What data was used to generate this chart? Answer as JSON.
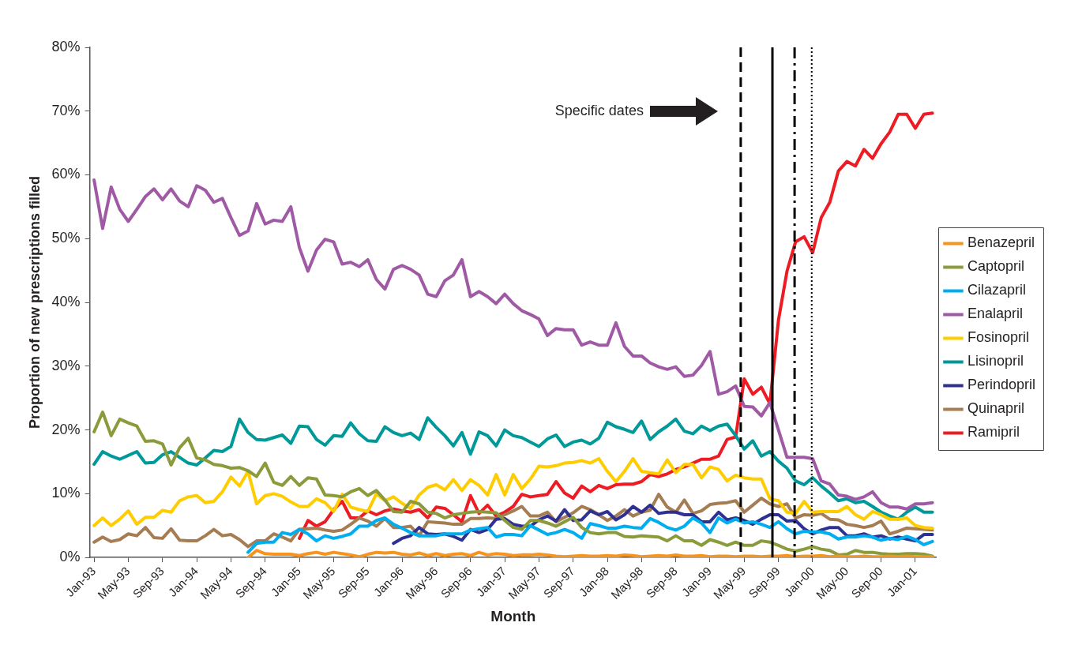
{
  "chart_data": {
    "type": "line",
    "xlabel": "Month",
    "ylabel": "Proportion of new prescriptions filled",
    "x": [
      "1993-01",
      "1993-02",
      "1993-03",
      "1993-04",
      "1993-05",
      "1993-06",
      "1993-07",
      "1993-08",
      "1993-09",
      "1993-10",
      "1993-11",
      "1993-12",
      "1994-01",
      "1994-02",
      "1994-03",
      "1994-04",
      "1994-05",
      "1994-06",
      "1994-07",
      "1994-08",
      "1994-09",
      "1994-10",
      "1994-11",
      "1994-12",
      "1995-01",
      "1995-02",
      "1995-03",
      "1995-04",
      "1995-05",
      "1995-06",
      "1995-07",
      "1995-08",
      "1995-09",
      "1995-10",
      "1995-11",
      "1995-12",
      "1996-01",
      "1996-02",
      "1996-03",
      "1996-04",
      "1996-05",
      "1996-06",
      "1996-07",
      "1996-08",
      "1996-09",
      "1996-10",
      "1996-11",
      "1996-12",
      "1997-01",
      "1997-02",
      "1997-03",
      "1997-04",
      "1997-05",
      "1997-06",
      "1997-07",
      "1997-08",
      "1997-09",
      "1997-10",
      "1997-11",
      "1997-12",
      "1998-01",
      "1998-02",
      "1998-03",
      "1998-04",
      "1998-05",
      "1998-06",
      "1998-07",
      "1998-08",
      "1998-09",
      "1998-10",
      "1998-11",
      "1998-12",
      "1999-01",
      "1999-02",
      "1999-03",
      "1999-04",
      "1999-05",
      "1999-06",
      "1999-07",
      "1999-08",
      "1999-09",
      "1999-10",
      "1999-11",
      "1999-12",
      "2000-01",
      "2000-02",
      "2000-03",
      "2000-04",
      "2000-05",
      "2000-06",
      "2000-07",
      "2000-08",
      "2000-09",
      "2000-10",
      "2000-11",
      "2000-12",
      "2001-01",
      "2001-02",
      "2001-03"
    ],
    "xlim": [
      "1992-12-16",
      "2001-03-16"
    ],
    "xticks": [
      {
        "value": "1993-01",
        "label": "Jan-93"
      },
      {
        "value": "1993-05",
        "label": "May-93"
      },
      {
        "value": "1993-09",
        "label": "Sep-93"
      },
      {
        "value": "1994-01",
        "label": "Jan-94"
      },
      {
        "value": "1994-05",
        "label": "May-94"
      },
      {
        "value": "1994-09",
        "label": "Sep-94"
      },
      {
        "value": "1995-01",
        "label": "Jan-95"
      },
      {
        "value": "1995-05",
        "label": "May-95"
      },
      {
        "value": "1995-09",
        "label": "Sep-95"
      },
      {
        "value": "1996-01",
        "label": "Jan-96"
      },
      {
        "value": "1996-05",
        "label": "May-96"
      },
      {
        "value": "1996-09",
        "label": "Sep-96"
      },
      {
        "value": "1997-01",
        "label": "Jan-97"
      },
      {
        "value": "1997-05",
        "label": "May-97"
      },
      {
        "value": "1997-09",
        "label": "Sep-97"
      },
      {
        "value": "1998-01",
        "label": "Jan-98"
      },
      {
        "value": "1998-05",
        "label": "May-98"
      },
      {
        "value": "1998-09",
        "label": "Sep-98"
      },
      {
        "value": "1999-01",
        "label": "Jan-99"
      },
      {
        "value": "1999-05",
        "label": "May-99"
      },
      {
        "value": "1999-09",
        "label": "Sep-99"
      },
      {
        "value": "2000-01",
        "label": "Jan-00"
      },
      {
        "value": "2000-05",
        "label": "May-00"
      },
      {
        "value": "2000-09",
        "label": "Sep-00"
      },
      {
        "value": "2001-01",
        "label": "Jan-01"
      }
    ],
    "ylim": [
      0,
      80
    ],
    "yticks": [
      {
        "value": 0,
        "label": "0%"
      },
      {
        "value": 10,
        "label": "10%"
      },
      {
        "value": 20,
        "label": "20%"
      },
      {
        "value": 30,
        "label": "30%"
      },
      {
        "value": 40,
        "label": "40%"
      },
      {
        "value": 50,
        "label": "50%"
      },
      {
        "value": 60,
        "label": "60%"
      },
      {
        "value": 70,
        "label": "70%"
      },
      {
        "value": 80,
        "label": "80%"
      }
    ],
    "grid": false,
    "legend": "right",
    "marker": "none",
    "line_style": "solid",
    "annotations": [
      "Specific dates"
    ],
    "ref_lines": [
      {
        "axis": "x",
        "value": "1999-04-19",
        "line_style": "dashed",
        "color": "#000000"
      },
      {
        "axis": "x",
        "value": "1999-08-10",
        "line_style": "solid",
        "color": "#000000"
      },
      {
        "axis": "x",
        "value": "1999-10-28",
        "line_style": "dashdot",
        "color": "#000000"
      },
      {
        "axis": "x",
        "value": "1999-12-28",
        "line_style": "dotted",
        "color": "#000000"
      }
    ],
    "series": [
      {
        "name": "Benazepril",
        "color": "#f7941d",
        "values": [
          null,
          null,
          null,
          null,
          null,
          null,
          null,
          null,
          null,
          null,
          null,
          null,
          null,
          null,
          null,
          null,
          null,
          null,
          0.0,
          1.1,
          0.6,
          0.5,
          0.5,
          0.5,
          0.3,
          0.6,
          0.8,
          0.5,
          0.8,
          0.6,
          0.4,
          0.1,
          0.5,
          0.8,
          0.7,
          0.8,
          0.5,
          0.4,
          0.7,
          0.3,
          0.6,
          0.3,
          0.5,
          0.6,
          0.3,
          0.8,
          0.4,
          0.6,
          0.5,
          0.3,
          0.4,
          0.4,
          0.5,
          0.4,
          0.2,
          0.1,
          0.2,
          0.3,
          0.2,
          0.2,
          0.3,
          0.2,
          0.4,
          0.3,
          0.1,
          0.2,
          0.3,
          0.2,
          0.4,
          0.2,
          0.2,
          0.3,
          0.1,
          0.2,
          0.2,
          0.1,
          0.2,
          0.2,
          0.1,
          0.2,
          0.2,
          0.3,
          0.1,
          0.2,
          0.2,
          0.3,
          0.1,
          0.2,
          0.1,
          0.1,
          0.2,
          0.1,
          0.1,
          0.2,
          0.1,
          0.2,
          0.1,
          0.1,
          0.1
        ]
      },
      {
        "name": "Captopril",
        "color": "#8b9a3a",
        "values": [
          19.7,
          22.8,
          19.1,
          21.7,
          21.1,
          20.6,
          18.2,
          18.3,
          17.8,
          14.5,
          17.2,
          18.7,
          15.6,
          15.3,
          14.6,
          14.4,
          14.0,
          14.1,
          13.6,
          12.7,
          14.8,
          11.8,
          11.3,
          12.7,
          11.3,
          12.5,
          12.3,
          9.8,
          9.7,
          9.5,
          10.3,
          10.8,
          9.7,
          10.5,
          9.0,
          7.2,
          7.1,
          8.8,
          8.4,
          7.1,
          6.9,
          6.2,
          6.7,
          6.9,
          7.1,
          7.2,
          7.1,
          7.0,
          5.8,
          4.7,
          4.4,
          5.8,
          5.8,
          5.4,
          4.9,
          5.6,
          6.3,
          4.7,
          3.9,
          3.7,
          3.9,
          3.9,
          3.3,
          3.2,
          3.4,
          3.3,
          3.2,
          2.6,
          3.4,
          2.6,
          2.6,
          1.9,
          2.8,
          2.4,
          1.9,
          2.4,
          1.9,
          1.9,
          2.6,
          2.4,
          1.9,
          1.3,
          1.0,
          1.3,
          1.7,
          1.3,
          1.1,
          0.4,
          0.5,
          1.1,
          0.8,
          0.8,
          0.6,
          0.5,
          0.5,
          0.6,
          0.6,
          0.5,
          0.2
        ]
      },
      {
        "name": "Cilazapril",
        "color": "#00aeef",
        "values": [
          null,
          null,
          null,
          null,
          null,
          null,
          null,
          null,
          null,
          null,
          null,
          null,
          null,
          null,
          null,
          null,
          null,
          null,
          0.8,
          2.2,
          2.4,
          2.4,
          3.9,
          3.6,
          4.4,
          3.7,
          2.6,
          3.4,
          3.0,
          3.3,
          3.7,
          4.9,
          4.9,
          5.8,
          6.2,
          5.2,
          4.6,
          3.9,
          3.4,
          3.4,
          3.4,
          3.7,
          3.7,
          3.7,
          4.3,
          4.5,
          4.7,
          3.2,
          3.6,
          3.6,
          3.4,
          5.0,
          4.3,
          3.6,
          3.9,
          4.4,
          3.9,
          3.0,
          5.3,
          5.0,
          4.6,
          4.6,
          4.9,
          4.7,
          4.6,
          6.1,
          5.5,
          4.7,
          4.3,
          4.9,
          6.2,
          5.4,
          3.9,
          6.2,
          5.4,
          6.0,
          5.4,
          5.6,
          5.2,
          4.7,
          5.6,
          4.5,
          3.7,
          4.1,
          4.0,
          4.0,
          3.7,
          2.9,
          3.2,
          3.2,
          3.4,
          3.2,
          2.7,
          3.0,
          2.8,
          3.3,
          2.8,
          2.0,
          2.5
        ]
      },
      {
        "name": "Enalapril",
        "color": "#a05aa5",
        "values": [
          59.2,
          51.6,
          58.1,
          54.6,
          52.7,
          54.6,
          56.6,
          57.8,
          56.1,
          57.8,
          55.9,
          55.0,
          58.3,
          57.6,
          55.7,
          56.3,
          53.3,
          50.5,
          51.2,
          55.5,
          52.3,
          52.9,
          52.7,
          55.0,
          48.6,
          44.9,
          48.2,
          49.9,
          49.5,
          46.0,
          46.3,
          45.6,
          46.7,
          43.6,
          42.1,
          45.2,
          45.8,
          45.2,
          44.3,
          41.3,
          40.9,
          43.4,
          44.3,
          46.7,
          40.9,
          41.7,
          40.9,
          39.8,
          41.3,
          39.8,
          38.7,
          38.1,
          37.4,
          34.8,
          35.9,
          35.7,
          35.7,
          33.3,
          33.8,
          33.3,
          33.3,
          36.8,
          33.1,
          31.6,
          31.6,
          30.5,
          29.9,
          29.5,
          29.9,
          28.4,
          28.6,
          30.1,
          32.3,
          25.6,
          26.0,
          26.9,
          23.7,
          23.6,
          22.2,
          24.3,
          20.0,
          15.7,
          15.7,
          15.7,
          15.5,
          12.0,
          11.5,
          9.8,
          9.6,
          9.1,
          9.5,
          10.3,
          8.6,
          7.9,
          7.9,
          7.6,
          8.4,
          8.4,
          8.6
        ]
      },
      {
        "name": "Fosinopril",
        "color": "#ffcc00",
        "values": [
          5.0,
          6.2,
          5.0,
          6.0,
          7.3,
          5.2,
          6.3,
          6.3,
          7.4,
          7.1,
          8.9,
          9.5,
          9.7,
          8.6,
          8.8,
          10.3,
          12.6,
          11.2,
          13.5,
          8.4,
          9.7,
          10.0,
          9.6,
          8.7,
          8.0,
          8.0,
          9.2,
          8.6,
          7.2,
          9.9,
          7.9,
          7.5,
          7.2,
          10.0,
          8.9,
          9.5,
          8.5,
          7.7,
          9.8,
          11.0,
          11.4,
          10.6,
          12.2,
          10.5,
          12.2,
          11.3,
          9.8,
          13.0,
          9.8,
          13.0,
          10.8,
          12.3,
          14.3,
          14.2,
          14.4,
          14.8,
          14.9,
          15.2,
          14.8,
          15.5,
          13.5,
          11.9,
          13.5,
          15.5,
          13.5,
          13.3,
          13.1,
          15.3,
          13.3,
          14.6,
          14.6,
          12.5,
          14.2,
          13.8,
          12.0,
          12.9,
          12.5,
          12.3,
          12.3,
          9.2,
          8.9,
          7.1,
          6.9,
          8.8,
          7.1,
          7.2,
          7.2,
          7.2,
          8.0,
          6.7,
          6.0,
          7.2,
          6.7,
          6.0,
          6.0,
          6.2,
          5.0,
          4.7,
          4.6
        ]
      },
      {
        "name": "Lisinopril",
        "color": "#009999",
        "values": [
          14.6,
          16.6,
          15.9,
          15.4,
          16.0,
          16.6,
          14.8,
          14.9,
          16.1,
          16.6,
          15.7,
          14.8,
          14.5,
          15.6,
          16.8,
          16.6,
          17.4,
          21.7,
          19.6,
          18.5,
          18.4,
          18.8,
          19.2,
          17.9,
          20.6,
          20.5,
          18.5,
          17.6,
          19.1,
          19.0,
          21.1,
          19.4,
          18.3,
          18.2,
          20.5,
          19.6,
          19.1,
          19.5,
          18.5,
          21.9,
          20.4,
          19.1,
          17.5,
          19.6,
          16.2,
          19.7,
          19.1,
          17.5,
          20.0,
          19.1,
          18.8,
          18.1,
          17.4,
          18.6,
          19.2,
          17.4,
          18.1,
          18.4,
          17.8,
          18.7,
          21.2,
          20.5,
          20.1,
          19.6,
          21.4,
          18.5,
          19.7,
          20.6,
          21.7,
          19.8,
          19.4,
          20.6,
          19.9,
          20.6,
          20.9,
          19.1,
          17.0,
          18.3,
          15.9,
          16.6,
          15.1,
          14.0,
          12.0,
          11.4,
          12.5,
          11.2,
          10.1,
          8.9,
          9.2,
          8.6,
          8.8,
          8.0,
          7.1,
          6.5,
          6.0,
          7.1,
          7.9,
          7.1,
          7.1
        ]
      },
      {
        "name": "Perindopril",
        "color": "#2e3192",
        "values": [
          null,
          null,
          null,
          null,
          null,
          null,
          null,
          null,
          null,
          null,
          null,
          null,
          null,
          null,
          null,
          null,
          null,
          null,
          null,
          null,
          null,
          null,
          null,
          null,
          null,
          null,
          null,
          null,
          null,
          null,
          null,
          null,
          null,
          null,
          null,
          2.2,
          3.0,
          3.4,
          4.7,
          3.7,
          3.6,
          3.7,
          3.3,
          2.7,
          4.4,
          3.9,
          4.4,
          6.0,
          6.1,
          5.2,
          4.9,
          4.9,
          5.9,
          6.5,
          5.7,
          7.5,
          5.8,
          5.9,
          7.3,
          6.7,
          7.2,
          5.9,
          6.7,
          8.0,
          7.1,
          8.2,
          6.9,
          7.1,
          7.1,
          6.7,
          6.7,
          5.6,
          5.6,
          7.1,
          5.9,
          6.2,
          5.8,
          5.2,
          6.0,
          6.7,
          6.7,
          5.7,
          5.8,
          4.5,
          3.7,
          4.3,
          4.7,
          4.7,
          3.4,
          3.4,
          3.7,
          3.2,
          3.4,
          2.9,
          3.2,
          2.9,
          2.6,
          3.6,
          3.6
        ]
      },
      {
        "name": "Quinapril",
        "color": "#a67c52",
        "values": [
          2.4,
          3.2,
          2.5,
          2.8,
          3.7,
          3.4,
          4.7,
          3.1,
          3.0,
          4.5,
          2.7,
          2.6,
          2.6,
          3.4,
          4.4,
          3.4,
          3.6,
          2.8,
          1.7,
          2.6,
          2.6,
          3.7,
          3.2,
          2.6,
          4.4,
          4.5,
          4.6,
          4.3,
          4.1,
          4.3,
          5.2,
          6.2,
          5.7,
          4.9,
          6.1,
          4.7,
          4.7,
          4.9,
          3.4,
          5.6,
          5.5,
          5.4,
          5.2,
          5.2,
          6.1,
          6.1,
          6.2,
          6.1,
          6.7,
          7.3,
          8.0,
          6.5,
          6.5,
          7.1,
          5.6,
          6.3,
          7.0,
          8.0,
          7.5,
          6.7,
          5.8,
          6.5,
          7.5,
          6.5,
          7.1,
          7.4,
          9.9,
          7.9,
          7.1,
          9.0,
          6.9,
          7.3,
          8.3,
          8.5,
          8.6,
          8.9,
          7.1,
          8.2,
          9.3,
          8.4,
          8.0,
          8.4,
          6.2,
          6.7,
          6.6,
          6.9,
          6.0,
          5.9,
          5.2,
          5.0,
          4.7,
          5.0,
          5.7,
          3.7,
          4.1,
          4.6,
          4.5,
          4.4,
          4.3
        ]
      },
      {
        "name": "Ramipril",
        "color": "#ed1c24",
        "values": [
          null,
          null,
          null,
          null,
          null,
          null,
          null,
          null,
          null,
          null,
          null,
          null,
          null,
          null,
          null,
          null,
          null,
          null,
          null,
          null,
          null,
          null,
          null,
          null,
          3.0,
          5.8,
          4.9,
          5.6,
          7.5,
          8.8,
          6.2,
          6.2,
          7.3,
          6.7,
          7.3,
          7.6,
          7.3,
          7.1,
          7.5,
          6.2,
          7.9,
          7.7,
          6.7,
          5.6,
          9.7,
          6.9,
          8.2,
          6.5,
          7.1,
          8.0,
          9.9,
          9.5,
          9.7,
          9.9,
          11.9,
          10.1,
          9.3,
          11.2,
          10.3,
          11.3,
          10.8,
          11.4,
          11.5,
          11.5,
          11.9,
          13.0,
          12.7,
          13.1,
          13.8,
          14.2,
          14.8,
          15.4,
          15.4,
          15.9,
          18.5,
          18.9,
          28.0,
          25.6,
          26.7,
          24.1,
          37.2,
          44.9,
          49.5,
          50.3,
          47.8,
          53.3,
          55.7,
          60.6,
          62.1,
          61.4,
          64.0,
          62.6,
          64.9,
          66.7,
          69.5,
          69.5,
          67.3,
          69.5,
          69.7
        ]
      }
    ]
  }
}
